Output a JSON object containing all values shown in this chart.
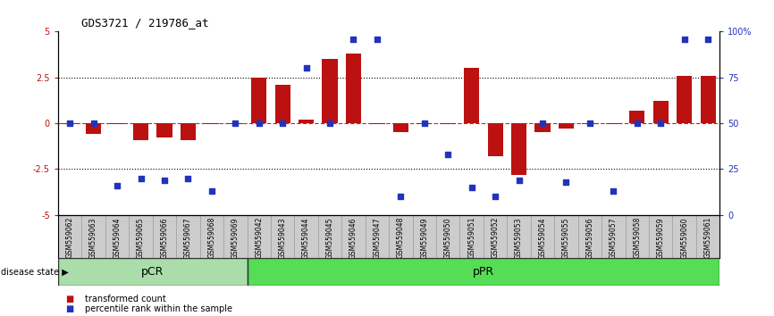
{
  "title": "GDS3721 / 219786_at",
  "samples": [
    "GSM559062",
    "GSM559063",
    "GSM559064",
    "GSM559065",
    "GSM559066",
    "GSM559067",
    "GSM559068",
    "GSM559069",
    "GSM559042",
    "GSM559043",
    "GSM559044",
    "GSM559045",
    "GSM559046",
    "GSM559047",
    "GSM559048",
    "GSM559049",
    "GSM559050",
    "GSM559051",
    "GSM559052",
    "GSM559053",
    "GSM559054",
    "GSM559055",
    "GSM559056",
    "GSM559057",
    "GSM559058",
    "GSM559059",
    "GSM559060",
    "GSM559061"
  ],
  "bar_values": [
    -0.05,
    -0.6,
    -0.05,
    -0.9,
    -0.8,
    -0.9,
    -0.05,
    -0.05,
    2.5,
    2.1,
    0.2,
    3.5,
    3.8,
    -0.05,
    -0.5,
    -0.05,
    -0.05,
    3.0,
    -1.8,
    -2.8,
    -0.5,
    -0.3,
    -0.05,
    -0.05,
    0.7,
    1.2,
    2.6,
    2.6
  ],
  "percentile_values": [
    50,
    50,
    16,
    20,
    19,
    20,
    13,
    50,
    50,
    50,
    80,
    50,
    96,
    96,
    10,
    50,
    33,
    15,
    10,
    19,
    50,
    18,
    50,
    13,
    50,
    50,
    96,
    96
  ],
  "pcr_count": 8,
  "ppr_count": 20,
  "ylim": [
    -5,
    5
  ],
  "bar_color": "#BB1111",
  "percentile_color": "#2233BB",
  "hline_color": "#CC2222",
  "dotted_lines": [
    -2.5,
    2.5
  ],
  "pcr_color": "#AADDAA",
  "ppr_color": "#55DD55",
  "disease_label": "disease state",
  "pcr_label": "pCR",
  "ppr_label": "pPR",
  "legend_bar": "transformed count",
  "legend_pct": "percentile rank within the sample",
  "bar_width": 0.65,
  "bg_color": "#CCCCCC",
  "right_yticks": [
    0,
    25,
    50,
    75,
    100
  ],
  "left_yticks": [
    -5,
    -2.5,
    0,
    2.5,
    5
  ]
}
